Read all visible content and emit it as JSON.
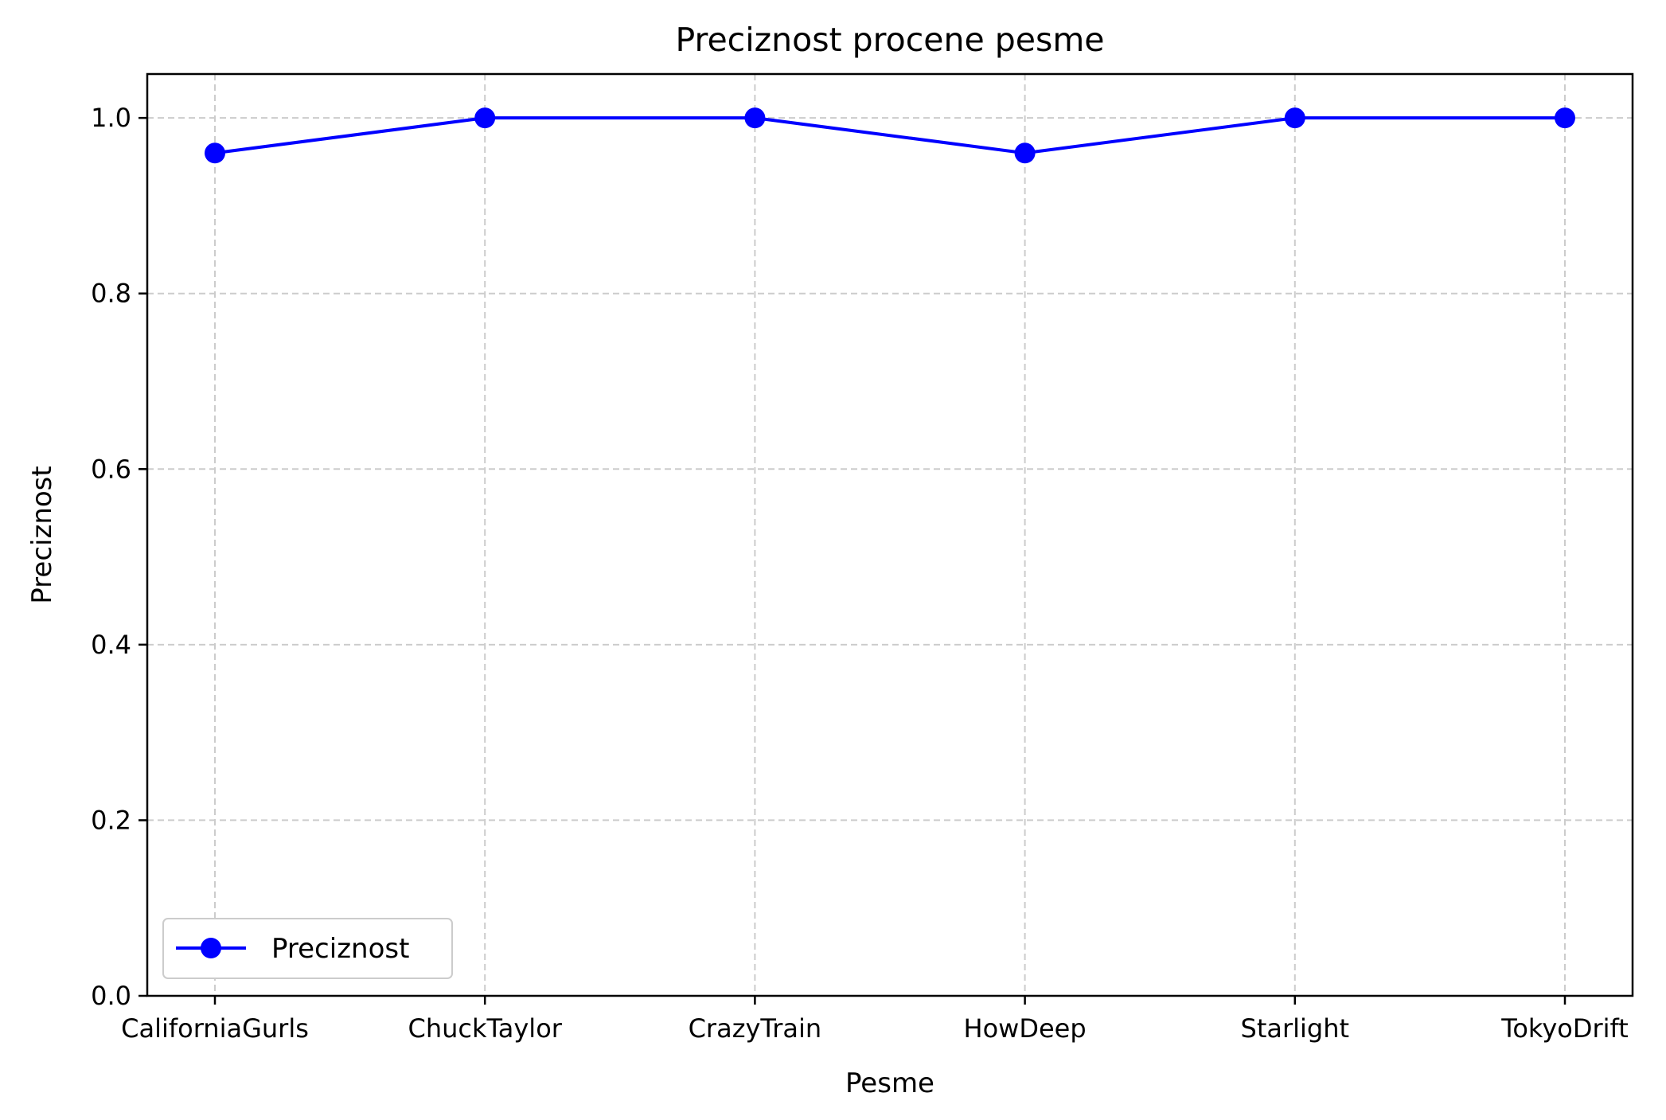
{
  "chart_data": {
    "type": "line",
    "title": "Preciznost procene pesme",
    "xlabel": "Pesme",
    "ylabel": "Preciznost",
    "categories": [
      "CaliforniaGurls",
      "ChuckTaylor",
      "CrazyTrain",
      "HowDeep",
      "Starlight",
      "TokyoDrift"
    ],
    "series": [
      {
        "name": "Preciznost",
        "color": "#0000ff",
        "marker": "circle",
        "values": [
          0.96,
          1.0,
          1.0,
          0.96,
          1.0,
          1.0
        ]
      }
    ],
    "ylim": [
      0.0,
      1.05
    ],
    "yticks": [
      "0.0",
      "0.2",
      "0.4",
      "0.6",
      "0.8",
      "1.0"
    ],
    "grid": true,
    "legend_position": "lower-left"
  }
}
